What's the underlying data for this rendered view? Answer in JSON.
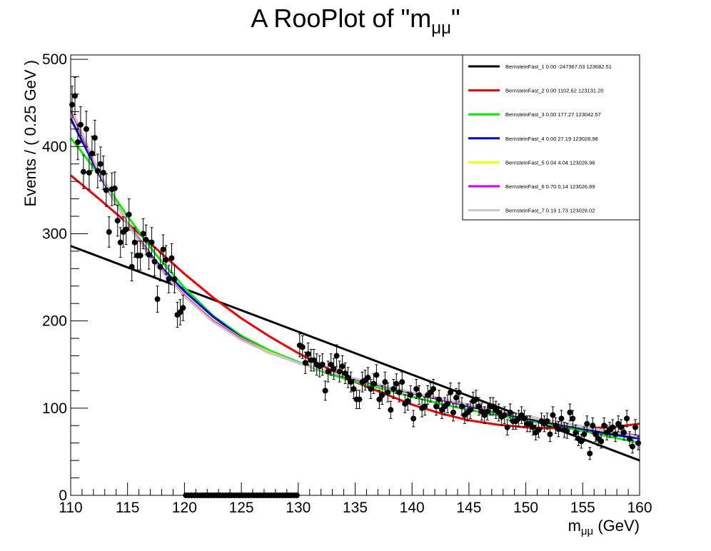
{
  "chart_data": {
    "type": "scatter",
    "title": "A RooPlot of \"m",
    "title_sub": "μμ",
    "title_end": "\"",
    "xlabel": "m",
    "xlabel_sub": "μμ",
    "xlabel_end": " (GeV)",
    "ylabel": "Events / ( 0.25 GeV )",
    "xlim": [
      110,
      160
    ],
    "ylim": [
      0,
      505
    ],
    "x_ticks": [
      110,
      115,
      120,
      125,
      130,
      135,
      140,
      145,
      150,
      155,
      160
    ],
    "y_ticks": [
      0,
      100,
      200,
      300,
      400,
      500
    ],
    "x_tick_labels": [
      "110",
      "115",
      "120",
      "125",
      "130",
      "135",
      "140",
      "145",
      "150",
      "155",
      "160"
    ],
    "y_tick_labels": [
      "0",
      "100",
      "200",
      "300",
      "400",
      "500"
    ],
    "data_points": {
      "x": [
        110.125,
        110.375,
        110.625,
        110.875,
        111.125,
        111.375,
        111.625,
        111.875,
        112.125,
        112.375,
        112.625,
        112.875,
        113.125,
        113.375,
        113.625,
        113.875,
        114.125,
        114.375,
        114.625,
        114.875,
        115.125,
        115.375,
        115.625,
        115.875,
        116.125,
        116.375,
        116.625,
        116.875,
        117.125,
        117.375,
        117.625,
        117.875,
        118.125,
        118.375,
        118.625,
        118.875,
        119.125,
        119.375,
        119.625,
        119.875,
        120.125,
        120.375,
        120.625,
        120.875,
        121.125,
        121.375,
        121.625,
        121.875,
        122.125,
        122.375,
        122.625,
        122.875,
        123.125,
        123.375,
        123.625,
        123.875,
        124.125,
        124.375,
        124.625,
        124.875,
        125.125,
        125.375,
        125.625,
        125.875,
        126.125,
        126.375,
        126.625,
        126.875,
        127.125,
        127.375,
        127.625,
        127.875,
        128.125,
        128.375,
        128.625,
        128.875,
        129.125,
        129.375,
        129.625,
        129.875,
        130.125,
        130.375,
        130.625,
        130.875,
        131.125,
        131.375,
        131.625,
        131.875,
        132.125,
        132.375,
        132.625,
        132.875,
        133.125,
        133.375,
        133.625,
        133.875,
        134.125,
        134.375,
        134.625,
        134.875,
        135.125,
        135.375,
        135.625,
        135.875,
        136.125,
        136.375,
        136.625,
        136.875,
        137.125,
        137.375,
        137.625,
        137.875,
        138.125,
        138.375,
        138.625,
        138.875,
        139.125,
        139.375,
        139.625,
        139.875,
        140.125,
        140.375,
        140.625,
        140.875,
        141.125,
        141.375,
        141.625,
        141.875,
        142.125,
        142.375,
        142.625,
        142.875,
        143.125,
        143.375,
        143.625,
        143.875,
        144.125,
        144.375,
        144.625,
        144.875,
        145.125,
        145.375,
        145.625,
        145.875,
        146.125,
        146.375,
        146.625,
        146.875,
        147.125,
        147.375,
        147.625,
        147.875,
        148.125,
        148.375,
        148.625,
        148.875,
        149.125,
        149.375,
        149.625,
        149.875,
        150.125,
        150.375,
        150.625,
        150.875,
        151.125,
        151.375,
        151.625,
        151.875,
        152.125,
        152.375,
        152.625,
        152.875,
        153.125,
        153.375,
        153.625,
        153.875,
        154.125,
        154.375,
        154.625,
        154.875,
        155.125,
        155.375,
        155.625,
        155.875,
        156.125,
        156.375,
        156.625,
        156.875,
        157.125,
        157.375,
        157.625,
        157.875,
        158.125,
        158.375,
        158.625,
        158.875,
        159.125,
        159.375,
        159.625,
        159.875
      ],
      "y": [
        448,
        458,
        405,
        425,
        371,
        420,
        370,
        392,
        410,
        372,
        380,
        370,
        350,
        302,
        351,
        352,
        315,
        290,
        302,
        305,
        322,
        262,
        290,
        275,
        275,
        300,
        293,
        276,
        290,
        268,
        225,
        262,
        282,
        270,
        248,
        272,
        248,
        207,
        210,
        215,
        0,
        0,
        0,
        0,
        0,
        0,
        0,
        0,
        0,
        0,
        0,
        0,
        0,
        0,
        0,
        0,
        0,
        0,
        0,
        0,
        0,
        0,
        0,
        0,
        0,
        0,
        0,
        0,
        0,
        0,
        0,
        0,
        0,
        0,
        0,
        0,
        0,
        0,
        0,
        0,
        172,
        170,
        152,
        162,
        155,
        155,
        150,
        148,
        150,
        120,
        142,
        150,
        145,
        160,
        142,
        148,
        140,
        135,
        130,
        122,
        110,
        110,
        130,
        132,
        135,
        122,
        128,
        138,
        110,
        115,
        130,
        118,
        98,
        122,
        128,
        118,
        130,
        105,
        108,
        115,
        88,
        122,
        115,
        100,
        102,
        115,
        118,
        122,
        102,
        110,
        98,
        102,
        105,
        118,
        95,
        112,
        118,
        102,
        92,
        95,
        98,
        108,
        110,
        102,
        96,
        92,
        96,
        102,
        102,
        98,
        95,
        90,
        92,
        78,
        95,
        85,
        85,
        88,
        92,
        88,
        82,
        82,
        78,
        72,
        75,
        85,
        82,
        85,
        70,
        92,
        80,
        76,
        88,
        75,
        74,
        95,
        88,
        72,
        65,
        62,
        70,
        82,
        48,
        80,
        70,
        65,
        62,
        80,
        72,
        75,
        78,
        70,
        82,
        78,
        72,
        88,
        65,
        56,
        78,
        60
      ]
    },
    "series": [
      {
        "name": "BernsteinFast_1  0.00 -247367.03 123682.51",
        "color": "#000000",
        "x": [
          110,
          160
        ],
        "y": [
          286,
          40
        ]
      },
      {
        "name": "BernsteinFast_2  0.00 1102.62 123131.20",
        "color": "#ee0000",
        "x": [
          110,
          112.5,
          115,
          117.5,
          120,
          122.5,
          125,
          127.5,
          130,
          132.5,
          135,
          137.5,
          140,
          142.5,
          145,
          147.5,
          150,
          152.5,
          155,
          157.5,
          160
        ],
        "y": [
          367,
          340,
          312,
          283,
          254,
          227,
          203,
          182,
          163,
          146,
          130,
          117,
          104,
          94,
          86,
          81,
          78,
          77,
          77,
          78,
          82
        ]
      },
      {
        "name": "BernsteinFast_3  0.00 177.27 123042.57",
        "color": "#00ee00",
        "x": [
          110,
          112.5,
          115,
          117.5,
          120,
          122.5,
          125,
          127.5,
          130,
          132.5,
          135,
          137.5,
          140,
          142.5,
          145,
          147.5,
          150,
          152.5,
          155,
          157.5,
          160
        ],
        "y": [
          410,
          368,
          320,
          276,
          238,
          206,
          183,
          166,
          153,
          140,
          130,
          122,
          113,
          105,
          98,
          92,
          86,
          80,
          74,
          67,
          60
        ]
      },
      {
        "name": "BernsteinFast_4  0.00 27.19 123028.98",
        "color": "#0000ee",
        "x": [
          110,
          112.5,
          115,
          117.5,
          120,
          122.5,
          125,
          127.5,
          130,
          132.5,
          135,
          137.5,
          140,
          142.5,
          145,
          147.5,
          150,
          152.5,
          155,
          157.5,
          160
        ],
        "y": [
          432,
          368,
          312,
          268,
          234,
          205,
          181,
          164,
          152,
          142,
          133,
          125,
          117,
          110,
          102,
          95,
          88,
          82,
          76,
          70,
          65
        ]
      },
      {
        "name": "BernsteinFast_5  0.04 4.04 123026.96",
        "color": "#ffff00",
        "x": [
          110,
          112.5,
          115,
          117.5,
          120,
          122.5,
          125,
          127.5,
          130,
          132.5,
          135,
          137.5,
          140,
          142.5,
          145,
          147.5,
          150,
          152.5,
          155,
          157.5,
          160
        ],
        "y": [
          440,
          370,
          312,
          266,
          230,
          201,
          180,
          164,
          152,
          142,
          133,
          125,
          117,
          110,
          103,
          96,
          90,
          84,
          78,
          73,
          68
        ]
      },
      {
        "name": "BernsteinFast_6  0.70 0.14 123026.89",
        "color": "#cc00ee",
        "x": [
          110,
          112.5,
          115,
          117.5,
          120,
          122.5,
          125,
          127.5,
          130,
          132.5,
          135,
          137.5,
          140,
          142.5,
          145,
          147.5,
          150,
          152.5,
          155,
          157.5,
          160
        ],
        "y": [
          442,
          370,
          311,
          265,
          229,
          200,
          179,
          163,
          152,
          142,
          133,
          125,
          117,
          110,
          103,
          97,
          91,
          85,
          79,
          73,
          68
        ]
      },
      {
        "name": "BernsteinFast_7  0.19 1.73 123026.02",
        "color": "#c8c8c8",
        "x": [
          110,
          112.5,
          115,
          117.5,
          120,
          122.5,
          125,
          127.5,
          130,
          132.5,
          135,
          137.5,
          140,
          142.5,
          145,
          147.5,
          150,
          152.5,
          155,
          157.5,
          160
        ],
        "y": [
          445,
          371,
          310,
          264,
          228,
          199,
          178,
          163,
          152,
          142,
          134,
          126,
          118,
          111,
          104,
          97,
          91,
          85,
          79,
          73,
          67
        ]
      }
    ],
    "grid": false,
    "legend_position": "top-right"
  }
}
